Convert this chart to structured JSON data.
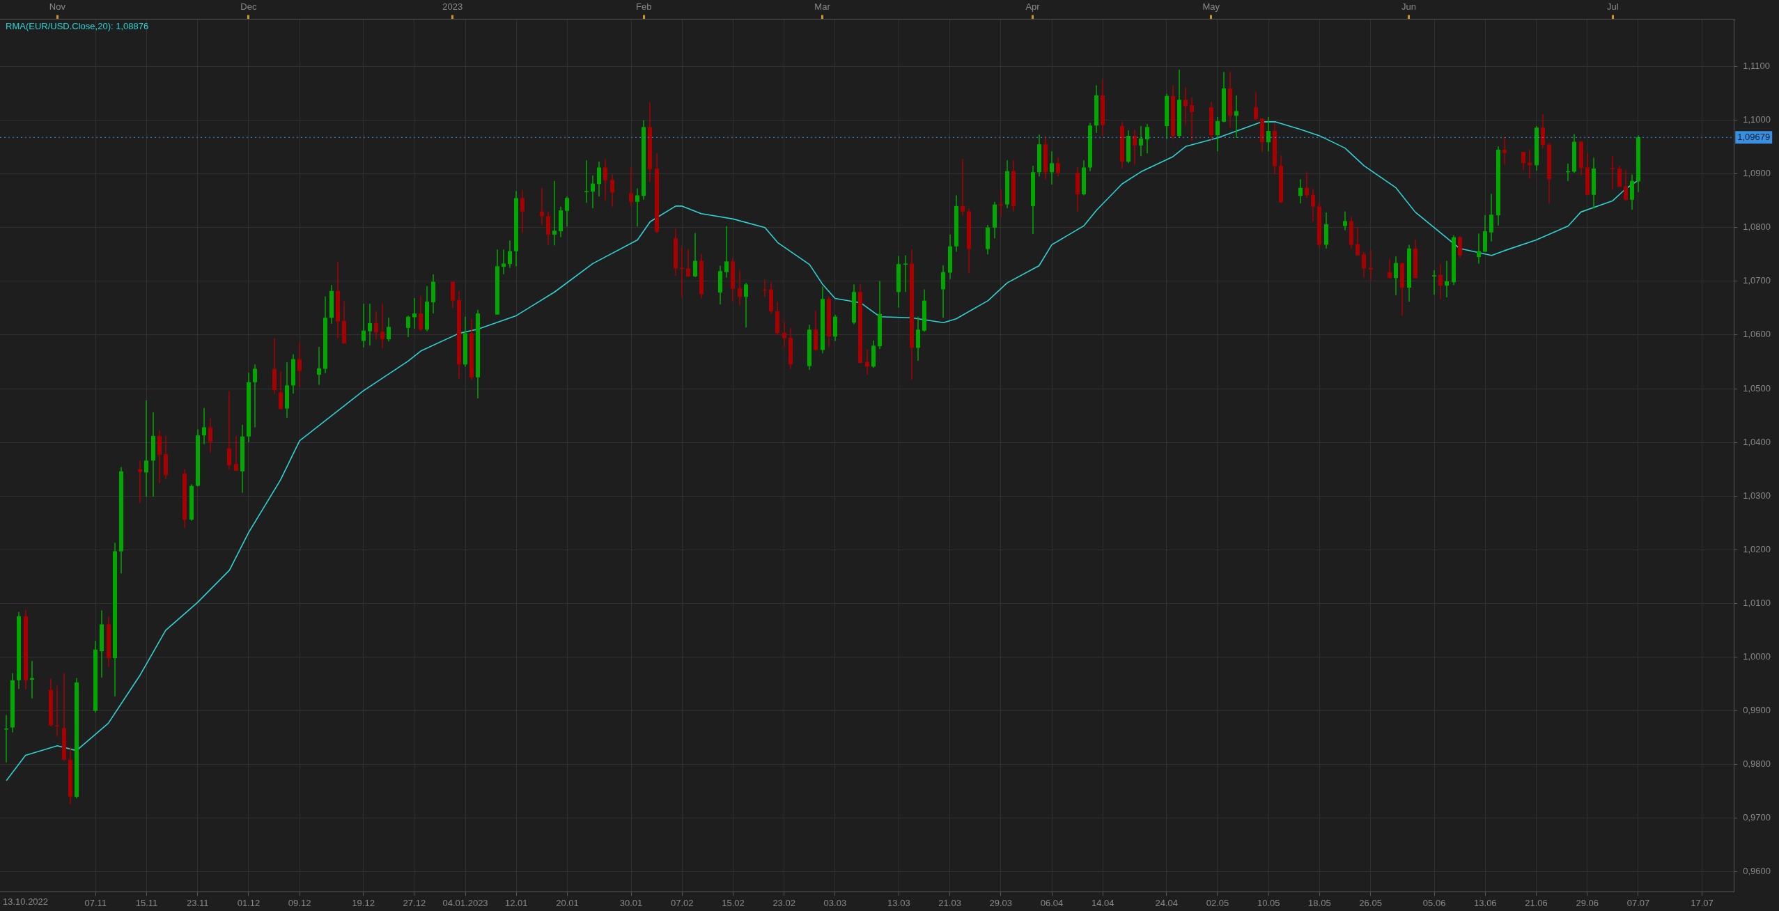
{
  "chart_data": {
    "type": "candlestick",
    "x": [
      "2022-10-24",
      "2022-10-25",
      "2022-10-26",
      "2022-10-27",
      "2022-10-28",
      "2022-10-31",
      "2022-11-01",
      "2022-11-02",
      "2022-11-03",
      "2022-11-04",
      "2022-11-07",
      "2022-11-08",
      "2022-11-09",
      "2022-11-10",
      "2022-11-11",
      "2022-11-14",
      "2022-11-15",
      "2022-11-16",
      "2022-11-17",
      "2022-11-18",
      "2022-11-21",
      "2022-11-22",
      "2022-11-23",
      "2022-11-24",
      "2022-11-25",
      "2022-11-28",
      "2022-11-29",
      "2022-11-30",
      "2022-12-01",
      "2022-12-02",
      "2022-12-05",
      "2022-12-06",
      "2022-12-07",
      "2022-12-08",
      "2022-12-09",
      "2022-12-12",
      "2022-12-13",
      "2022-12-14",
      "2022-12-15",
      "2022-12-16",
      "2022-12-19",
      "2022-12-20",
      "2022-12-21",
      "2022-12-22",
      "2022-12-23",
      "2022-12-26",
      "2022-12-27",
      "2022-12-28",
      "2022-12-29",
      "2022-12-30",
      "2023-01-02",
      "2023-01-03",
      "2023-01-04",
      "2023-01-05",
      "2023-01-06",
      "2023-01-09",
      "2023-01-10",
      "2023-01-11",
      "2023-01-12",
      "2023-01-13",
      "2023-01-16",
      "2023-01-17",
      "2023-01-18",
      "2023-01-19",
      "2023-01-20",
      "2023-01-23",
      "2023-01-24",
      "2023-01-25",
      "2023-01-26",
      "2023-01-27",
      "2023-01-30",
      "2023-01-31",
      "2023-02-01",
      "2023-02-02",
      "2023-02-03",
      "2023-02-06",
      "2023-02-07",
      "2023-02-08",
      "2023-02-09",
      "2023-02-10",
      "2023-02-13",
      "2023-02-14",
      "2023-02-15",
      "2023-02-16",
      "2023-02-17",
      "2023-02-20",
      "2023-02-21",
      "2023-02-22",
      "2023-02-23",
      "2023-02-24",
      "2023-02-27",
      "2023-02-28",
      "2023-03-01",
      "2023-03-02",
      "2023-03-03",
      "2023-03-06",
      "2023-03-07",
      "2023-03-08",
      "2023-03-09",
      "2023-03-10",
      "2023-03-13",
      "2023-03-14",
      "2023-03-15",
      "2023-03-16",
      "2023-03-17",
      "2023-03-20",
      "2023-03-21",
      "2023-03-22",
      "2023-03-23",
      "2023-03-24",
      "2023-03-27",
      "2023-03-28",
      "2023-03-29",
      "2023-03-30",
      "2023-03-31",
      "2023-04-03",
      "2023-04-04",
      "2023-04-05",
      "2023-04-06",
      "2023-04-07",
      "2023-04-10",
      "2023-04-11",
      "2023-04-12",
      "2023-04-13",
      "2023-04-14",
      "2023-04-17",
      "2023-04-18",
      "2023-04-19",
      "2023-04-20",
      "2023-04-21",
      "2023-04-24",
      "2023-04-25",
      "2023-04-26",
      "2023-04-27",
      "2023-04-28",
      "2023-05-01",
      "2023-05-02",
      "2023-05-03",
      "2023-05-04",
      "2023-05-05",
      "2023-05-08",
      "2023-05-09",
      "2023-05-10",
      "2023-05-11",
      "2023-05-12",
      "2023-05-15",
      "2023-05-16",
      "2023-05-17",
      "2023-05-18",
      "2023-05-19",
      "2023-05-22",
      "2023-05-23",
      "2023-05-24",
      "2023-05-25",
      "2023-05-26",
      "2023-05-29",
      "2023-05-30",
      "2023-05-31",
      "2023-06-01",
      "2023-06-02",
      "2023-06-05",
      "2023-06-06",
      "2023-06-07",
      "2023-06-08",
      "2023-06-09",
      "2023-06-12",
      "2023-06-13",
      "2023-06-14",
      "2023-06-15",
      "2023-06-16",
      "2023-06-19",
      "2023-06-20",
      "2023-06-21",
      "2023-06-22",
      "2023-06-23",
      "2023-06-26",
      "2023-06-27",
      "2023-06-28",
      "2023-06-29",
      "2023-06-30",
      "2023-07-03",
      "2023-07-04",
      "2023-07-05",
      "2023-07-06",
      "2023-07-07"
    ],
    "ohlc": [
      [
        0.9866,
        0.9892,
        0.9804,
        0.9867
      ],
      [
        0.9869,
        0.997,
        0.986,
        0.9957
      ],
      [
        0.9957,
        1.0084,
        0.9941,
        1.0076
      ],
      [
        1.0076,
        1.0088,
        0.994,
        0.9957
      ],
      [
        0.9958,
        0.9993,
        0.9923,
        0.9961
      ],
      [
        0.9939,
        0.996,
        0.9871,
        0.9873
      ],
      [
        0.9873,
        0.9947,
        0.9853,
        0.9872
      ],
      [
        0.9868,
        0.997,
        0.9807,
        0.9809
      ],
      [
        0.9809,
        0.9833,
        0.9726,
        0.974
      ],
      [
        0.974,
        0.9961,
        0.9737,
        0.9953
      ],
      [
        0.99,
        1.003,
        0.9897,
        1.0014
      ],
      [
        1.0011,
        1.0087,
        0.9962,
        1.0061
      ],
      [
        1.0061,
        1.0076,
        0.9982,
        0.9998
      ],
      [
        0.9998,
        1.0213,
        0.9927,
        1.0197
      ],
      [
        1.0197,
        1.0354,
        1.0156,
        1.0346
      ],
      [
        1.035,
        1.0366,
        1.0287,
        1.0345
      ],
      [
        1.0344,
        1.0478,
        1.0299,
        1.0366
      ],
      [
        1.0366,
        1.0456,
        1.0299,
        1.0412
      ],
      [
        1.0412,
        1.0423,
        1.0324,
        1.0377
      ],
      [
        1.0378,
        1.0412,
        1.0331,
        1.0339
      ],
      [
        1.0342,
        1.035,
        1.0241,
        1.0256
      ],
      [
        1.0256,
        1.0322,
        1.0254,
        1.0319
      ],
      [
        1.0319,
        1.0424,
        1.0318,
        1.0413
      ],
      [
        1.0413,
        1.0464,
        1.0397,
        1.0428
      ],
      [
        1.0428,
        1.0445,
        1.0381,
        1.0401
      ],
      [
        1.0389,
        1.0495,
        1.0349,
        1.0357
      ],
      [
        1.036,
        1.0412,
        1.0347,
        1.0347
      ],
      [
        1.0346,
        1.0433,
        1.0306,
        1.0411
      ],
      [
        1.0411,
        1.053,
        1.04,
        1.0512
      ],
      [
        1.0512,
        1.0545,
        1.0428,
        1.0537
      ],
      [
        1.0537,
        1.0594,
        1.049,
        1.0497
      ],
      [
        1.0493,
        1.0532,
        1.0461,
        1.0462
      ],
      [
        1.0463,
        1.0549,
        1.0446,
        1.0506
      ],
      [
        1.0506,
        1.0564,
        1.0491,
        1.0555
      ],
      [
        1.0555,
        1.0587,
        1.0503,
        1.0533
      ],
      [
        1.0526,
        1.0578,
        1.0507,
        1.0538
      ],
      [
        1.0537,
        1.0672,
        1.0529,
        1.0632
      ],
      [
        1.0632,
        1.0693,
        1.0621,
        1.0682
      ],
      [
        1.0682,
        1.0736,
        1.0594,
        1.0625
      ],
      [
        1.0626,
        1.0663,
        1.0584,
        1.0584
      ],
      [
        1.0589,
        1.0658,
        1.0577,
        1.0608
      ],
      [
        1.0607,
        1.0658,
        1.058,
        1.0622
      ],
      [
        1.0622,
        1.0644,
        1.0592,
        1.0605
      ],
      [
        1.0606,
        1.0659,
        1.0575,
        1.0592
      ],
      [
        1.0592,
        1.0632,
        1.0588,
        1.0615
      ],
      [
        1.0613,
        1.0636,
        1.0596,
        1.0634
      ],
      [
        1.0633,
        1.0669,
        1.0612,
        1.064
      ],
      [
        1.064,
        1.0673,
        1.0607,
        1.061
      ],
      [
        1.061,
        1.0691,
        1.0607,
        1.0662
      ],
      [
        1.0661,
        1.0713,
        1.064,
        1.0699
      ],
      [
        1.0699,
        1.0699,
        1.065,
        1.0664
      ],
      [
        1.0665,
        1.0682,
        1.0519,
        1.0545
      ],
      [
        1.0545,
        1.0634,
        1.0541,
        1.0603
      ],
      [
        1.0603,
        1.063,
        1.0516,
        1.0521
      ],
      [
        1.0521,
        1.0647,
        1.0482,
        1.064
      ],
      [
        1.0638,
        1.0759,
        1.0638,
        1.0728
      ],
      [
        1.0727,
        1.0759,
        1.0713,
        1.0733
      ],
      [
        1.0732,
        1.0776,
        1.0725,
        1.0756
      ],
      [
        1.0756,
        1.0868,
        1.0728,
        1.0855
      ],
      [
        1.0855,
        1.087,
        1.079,
        1.083
      ],
      [
        1.083,
        1.0874,
        1.0805,
        1.0821
      ],
      [
        1.0821,
        1.083,
        1.0768,
        1.0787
      ],
      [
        1.0787,
        1.0887,
        1.0767,
        1.0794
      ],
      [
        1.0793,
        1.0839,
        1.0782,
        1.0832
      ],
      [
        1.0831,
        1.0858,
        1.0802,
        1.0855
      ],
      [
        1.0867,
        1.0925,
        1.0846,
        1.0868
      ],
      [
        1.0867,
        1.0897,
        1.0836,
        1.0882
      ],
      [
        1.0881,
        1.0923,
        1.0858,
        1.0912
      ],
      [
        1.0912,
        1.0927,
        1.0851,
        1.0888
      ],
      [
        1.0889,
        1.0899,
        1.0839,
        1.0865
      ],
      [
        1.0864,
        1.0912,
        1.0839,
        1.0848
      ],
      [
        1.0848,
        1.0873,
        1.0802,
        1.086
      ],
      [
        1.0859,
        1.1,
        1.0852,
        1.0987
      ],
      [
        1.0987,
        1.1033,
        1.0885,
        1.0909
      ],
      [
        1.091,
        1.0938,
        1.079,
        1.0792
      ],
      [
        1.078,
        1.0798,
        1.071,
        1.0724
      ],
      [
        1.0725,
        1.0765,
        1.067,
        1.0723
      ],
      [
        1.0724,
        1.076,
        1.0708,
        1.0709
      ],
      [
        1.0709,
        1.079,
        1.0708,
        1.0738
      ],
      [
        1.0738,
        1.0751,
        1.0668,
        1.0676
      ],
      [
        1.0679,
        1.0729,
        1.0657,
        1.0719
      ],
      [
        1.0717,
        1.0803,
        1.0707,
        1.0737
      ],
      [
        1.0737,
        1.0743,
        1.0662,
        1.0686
      ],
      [
        1.0687,
        1.0721,
        1.0655,
        1.0671
      ],
      [
        1.0671,
        1.0697,
        1.0614,
        1.0694
      ],
      [
        1.0685,
        1.0703,
        1.0671,
        1.0684
      ],
      [
        1.0685,
        1.0698,
        1.0639,
        1.0644
      ],
      [
        1.0644,
        1.0662,
        1.06,
        1.0603
      ],
      [
        1.0604,
        1.0626,
        1.0577,
        1.0594
      ],
      [
        1.0595,
        1.0613,
        1.0537,
        1.0545
      ],
      [
        1.0542,
        1.0619,
        1.0535,
        1.061
      ],
      [
        1.061,
        1.0645,
        1.0571,
        1.0572
      ],
      [
        1.0572,
        1.069,
        1.0566,
        1.0667
      ],
      [
        1.0667,
        1.0672,
        1.0577,
        1.0597
      ],
      [
        1.0597,
        1.0638,
        1.0589,
        1.0634
      ],
      [
        1.0623,
        1.0694,
        1.062,
        1.068
      ],
      [
        1.068,
        1.0694,
        1.0547,
        1.0548
      ],
      [
        1.055,
        1.0573,
        1.0526,
        1.0541
      ],
      [
        1.0541,
        1.059,
        1.0539,
        1.058
      ],
      [
        1.0579,
        1.07,
        1.0574,
        1.0639
      ],
      [
        1.068,
        1.0747,
        1.0651,
        1.0732
      ],
      [
        1.0732,
        1.0748,
        1.068,
        1.0733
      ],
      [
        1.0733,
        1.0759,
        1.0517,
        1.0576
      ],
      [
        1.0576,
        1.0634,
        1.0552,
        1.061
      ],
      [
        1.0608,
        1.0685,
        1.0606,
        1.0664
      ],
      [
        1.0685,
        1.073,
        1.0632,
        1.0717
      ],
      [
        1.0716,
        1.0787,
        1.0704,
        1.0765
      ],
      [
        1.0765,
        1.086,
        1.0755,
        1.084
      ],
      [
        1.084,
        1.0928,
        1.0822,
        1.083
      ],
      [
        1.083,
        1.0836,
        1.0715,
        1.076
      ],
      [
        1.076,
        1.0805,
        1.075,
        1.08
      ],
      [
        1.08,
        1.0848,
        1.078,
        1.0843
      ],
      [
        1.0843,
        1.087,
        1.082,
        1.0842
      ],
      [
        1.0843,
        1.0925,
        1.0836,
        1.0905
      ],
      [
        1.0905,
        1.0925,
        1.083,
        1.084
      ],
      [
        1.084,
        1.0915,
        1.0788,
        1.0903
      ],
      [
        1.0903,
        1.0973,
        1.0895,
        1.0955
      ],
      [
        1.0955,
        1.097,
        1.089,
        1.0903
      ],
      [
        1.0903,
        1.0942,
        1.088,
        1.092
      ],
      [
        1.092,
        1.093,
        1.0895,
        1.0902
      ],
      [
        1.0902,
        1.0912,
        1.083,
        1.0862
      ],
      [
        1.0862,
        1.0925,
        1.086,
        1.0912
      ],
      [
        1.0912,
        1.0995,
        1.0905,
        1.099
      ],
      [
        1.099,
        1.1065,
        1.0976,
        1.1046
      ],
      [
        1.1046,
        1.1075,
        1.0971,
        1.0991
      ],
      [
        1.0989,
        1.0997,
        1.091,
        1.0923
      ],
      [
        1.0923,
        1.0981,
        1.092,
        1.0971
      ],
      [
        1.0971,
        1.0982,
        1.0917,
        1.0953
      ],
      [
        1.0953,
        1.0989,
        1.0933,
        1.0966
      ],
      [
        1.0964,
        1.0993,
        1.0938,
        1.0987
      ],
      [
        1.0989,
        1.1049,
        1.0965,
        1.1045
      ],
      [
        1.1045,
        1.1065,
        1.0964,
        1.0971
      ],
      [
        1.0971,
        1.1094,
        1.0967,
        1.1038
      ],
      [
        1.1038,
        1.1061,
        1.0991,
        1.1026
      ],
      [
        1.1028,
        1.1043,
        1.0961,
        1.1015
      ],
      [
        1.1024,
        1.1034,
        1.0963,
        1.0972
      ],
      [
        1.0972,
        1.1006,
        1.0942,
        1.0998
      ],
      [
        1.0997,
        1.109,
        1.0996,
        1.1059
      ],
      [
        1.1059,
        1.109,
        1.0986,
        1.1008
      ],
      [
        1.1008,
        1.1046,
        1.0967,
        1.1017
      ],
      [
        1.1024,
        1.1052,
        1.1,
        1.1002
      ],
      [
        1.1003,
        1.1003,
        1.0941,
        1.0959
      ],
      [
        1.0959,
        1.1006,
        1.0942,
        1.098
      ],
      [
        1.098,
        1.0995,
        1.0899,
        1.0914
      ],
      [
        1.0915,
        1.0934,
        1.0846,
        1.0847
      ],
      [
        1.0859,
        1.089,
        1.0845,
        1.0874
      ],
      [
        1.0874,
        1.0903,
        1.0855,
        1.086
      ],
      [
        1.0861,
        1.0872,
        1.0811,
        1.0839
      ],
      [
        1.0839,
        1.0847,
        1.0763,
        1.0768
      ],
      [
        1.0768,
        1.0828,
        1.0761,
        1.0806
      ],
      [
        1.0803,
        1.083,
        1.0795,
        1.0812
      ],
      [
        1.0812,
        1.082,
        1.0761,
        1.0768
      ],
      [
        1.0769,
        1.08,
        1.0748,
        1.0748
      ],
      [
        1.075,
        1.0755,
        1.0707,
        1.0724
      ],
      [
        1.0725,
        1.0758,
        1.0702,
        1.0722
      ],
      [
        1.0717,
        1.0742,
        1.0706,
        1.0706
      ],
      [
        1.0706,
        1.0746,
        1.0674,
        1.0734
      ],
      [
        1.0734,
        1.0734,
        1.0636,
        1.0688
      ],
      [
        1.0688,
        1.0768,
        1.0662,
        1.0761
      ],
      [
        1.0761,
        1.0778,
        1.0706,
        1.0706
      ],
      [
        1.071,
        1.0721,
        1.0675,
        1.0711
      ],
      [
        1.0712,
        1.0732,
        1.0667,
        1.0692
      ],
      [
        1.0692,
        1.0738,
        1.067,
        1.07
      ],
      [
        1.0698,
        1.0786,
        1.0693,
        1.0782
      ],
      [
        1.0782,
        1.0784,
        1.0744,
        1.0748
      ],
      [
        1.0745,
        1.0789,
        1.0733,
        1.0756
      ],
      [
        1.0755,
        1.0823,
        1.0755,
        1.0793
      ],
      [
        1.0791,
        1.0863,
        1.0774,
        1.0824
      ],
      [
        1.0823,
        1.0951,
        1.0804,
        1.0945
      ],
      [
        1.0945,
        1.0969,
        1.0917,
        1.0939
      ],
      [
        1.0941,
        1.0941,
        1.0907,
        1.092
      ],
      [
        1.0921,
        1.0945,
        1.0891,
        1.0916
      ],
      [
        1.0916,
        1.0989,
        1.0906,
        1.0986
      ],
      [
        1.0986,
        1.1011,
        1.0948,
        1.0954
      ],
      [
        1.0955,
        1.0958,
        1.0845,
        1.089
      ],
      [
        1.0904,
        1.0919,
        1.0887,
        1.0905
      ],
      [
        1.0904,
        1.0974,
        1.0902,
        1.096
      ],
      [
        1.096,
        1.0961,
        1.0897,
        1.0911
      ],
      [
        1.0912,
        1.0939,
        1.0861,
        1.0861
      ],
      [
        1.0861,
        1.093,
        1.0835,
        1.091
      ],
      [
        1.0911,
        1.0933,
        1.0871,
        1.0909
      ],
      [
        1.091,
        1.0915,
        1.0876,
        1.0876
      ],
      [
        1.0877,
        1.0907,
        1.085,
        1.0852
      ],
      [
        1.0852,
        1.0899,
        1.0833,
        1.0887
      ],
      [
        1.0886,
        1.0972,
        1.0866,
        1.09679
      ]
    ],
    "colors": [
      "#00a800",
      "#00a800",
      "#00a800",
      "#a80000",
      "#00a800",
      "#a80000",
      "#a80000",
      "#a80000",
      "#a80000",
      "#00a800",
      "#00a800",
      "#00a800",
      "#a80000",
      "#00a800",
      "#00a800",
      "#a80000",
      "#00a800",
      "#00a800",
      "#a80000",
      "#a80000",
      "#a80000",
      "#00a800",
      "#00a800",
      "#00a800",
      "#a80000",
      "#a80000",
      "#a80000",
      "#00a800",
      "#00a800",
      "#00a800",
      "#a80000",
      "#a80000",
      "#00a800",
      "#00a800",
      "#a80000",
      "#00a800",
      "#00a800",
      "#00a800",
      "#a80000",
      "#a80000",
      "#00a800",
      "#00a800",
      "#a80000",
      "#a80000",
      "#00a800",
      "#00a800",
      "#00a800",
      "#a80000",
      "#00a800",
      "#00a800",
      "#a80000",
      "#a80000",
      "#00a800",
      "#a80000",
      "#00a800",
      "#00a800",
      "#00a800",
      "#00a800",
      "#00a800",
      "#a80000",
      "#a80000",
      "#a80000",
      "#00a800",
      "#00a800",
      "#00a800",
      "#00a800",
      "#00a800",
      "#00a800",
      "#a80000",
      "#a80000",
      "#a80000",
      "#00a800",
      "#00a800",
      "#a80000",
      "#a80000",
      "#a80000",
      "#a80000",
      "#a80000",
      "#00a800",
      "#a80000",
      "#00a800",
      "#00a800",
      "#a80000",
      "#a80000",
      "#00a800",
      "#a80000",
      "#a80000",
      "#a80000",
      "#a80000",
      "#a80000",
      "#00a800",
      "#a80000",
      "#00a800",
      "#a80000",
      "#00a800",
      "#00a800",
      "#a80000",
      "#a80000",
      "#00a800",
      "#00a800",
      "#00a800",
      "#00a800",
      "#a80000",
      "#00a800",
      "#00a800",
      "#00a800",
      "#00a800",
      "#00a800",
      "#a80000",
      "#a80000",
      "#00a800",
      "#00a800",
      "#a80000",
      "#00a800",
      "#a80000",
      "#00a800",
      "#00a800",
      "#a80000",
      "#00a800",
      "#a80000",
      "#a80000",
      "#00a800",
      "#00a800",
      "#00a800",
      "#a80000",
      "#a80000",
      "#00a800",
      "#a80000",
      "#00a800",
      "#00a800",
      "#00a800",
      "#a80000",
      "#00a800",
      "#a80000",
      "#a80000",
      "#a80000",
      "#00a800",
      "#00a800",
      "#a80000",
      "#00a800",
      "#a80000",
      "#a80000",
      "#00a800",
      "#a80000",
      "#a80000",
      "#00a800",
      "#a80000",
      "#a80000",
      "#a80000",
      "#00a800",
      "#00a800",
      "#a80000",
      "#a80000",
      "#a80000",
      "#a80000",
      "#a80000",
      "#00a800",
      "#a80000",
      "#00a800",
      "#a80000",
      "#00a800",
      "#a80000",
      "#00a800",
      "#00a800",
      "#a80000",
      "#00a800",
      "#00a800",
      "#00a800",
      "#00a800",
      "#a80000",
      "#a80000",
      "#a80000",
      "#00a800",
      "#a80000",
      "#a80000",
      "#00a800",
      "#00a800",
      "#a80000",
      "#a80000",
      "#00a800",
      "#a80000",
      "#a80000",
      "#a80000",
      "#00a800",
      "#00a800"
    ],
    "series": [
      {
        "type": "line",
        "name": "RMA(EUR/USD.Close,20): 1,08876",
        "color": "#2fd3d3",
        "x": [
          "2022-10-24",
          "2022-10-27",
          "2022-11-01",
          "2022-11-04",
          "2022-11-09",
          "2022-11-14",
          "2022-11-18",
          "2022-11-23",
          "2022-11-28",
          "2022-12-01",
          "2022-12-06",
          "2022-12-09",
          "2022-12-19",
          "2022-12-26",
          "2022-12-28",
          "2023-01-03",
          "2023-01-06",
          "2023-01-12",
          "2023-01-18",
          "2023-01-24",
          "2023-01-31",
          "2023-02-02",
          "2023-02-06",
          "2023-02-07",
          "2023-02-10",
          "2023-02-15",
          "2023-02-20",
          "2023-02-22",
          "2023-02-27",
          "2023-03-01",
          "2023-03-03",
          "2023-03-07",
          "2023-03-10",
          "2023-03-15",
          "2023-03-20",
          "2023-03-22",
          "2023-03-27",
          "2023-03-30",
          "2023-04-04",
          "2023-04-06",
          "2023-04-11",
          "2023-04-13",
          "2023-04-17",
          "2023-04-20",
          "2023-04-25",
          "2023-04-27",
          "2023-05-02",
          "2023-05-05",
          "2023-05-09",
          "2023-05-11",
          "2023-05-15",
          "2023-05-18",
          "2023-05-22",
          "2023-05-25",
          "2023-05-30",
          "2023-06-02",
          "2023-06-06",
          "2023-06-09",
          "2023-06-14",
          "2023-06-16",
          "2023-06-21",
          "2023-06-26",
          "2023-06-28",
          "2023-07-03",
          "2023-07-05",
          "2023-07-07"
        ],
        "values": [
          0.977,
          0.9817,
          0.9835,
          0.9826,
          0.9877,
          0.9967,
          1.005,
          1.0102,
          1.0162,
          1.0232,
          1.033,
          1.0403,
          1.0496,
          1.0551,
          1.057,
          1.0603,
          1.0611,
          1.0636,
          1.068,
          1.0733,
          1.0777,
          1.0811,
          1.084,
          1.084,
          1.0826,
          1.0816,
          1.08,
          1.0772,
          1.0731,
          1.0695,
          1.0668,
          1.066,
          1.0634,
          1.0632,
          1.0623,
          1.063,
          1.0664,
          1.0697,
          1.0729,
          1.0768,
          1.0803,
          1.0832,
          1.0881,
          1.0904,
          1.0932,
          1.0951,
          1.0967,
          1.098,
          1.0997,
          1.0997,
          1.0983,
          1.0971,
          1.0948,
          1.0915,
          1.0874,
          1.0829,
          1.079,
          1.0761,
          1.0748,
          1.0757,
          1.0777,
          1.0803,
          1.0829,
          1.085,
          1.0872,
          1.0888
        ]
      }
    ],
    "xlim": [
      "2022-10-23",
      "2023-07-22"
    ],
    "xticks": [
      {
        "value": "2022-11-07",
        "label": "07.11"
      },
      {
        "value": "2022-11-15",
        "label": "15.11"
      },
      {
        "value": "2022-11-23",
        "label": "23.11"
      },
      {
        "value": "2022-12-01",
        "label": "01.12"
      },
      {
        "value": "2022-12-09",
        "label": "09.12"
      },
      {
        "value": "2022-12-19",
        "label": "19.12"
      },
      {
        "value": "2022-12-27",
        "label": "27.12"
      },
      {
        "value": "2023-01-04",
        "label": "04.01.2023"
      },
      {
        "value": "2023-01-12",
        "label": "12.01"
      },
      {
        "value": "2023-01-20",
        "label": "20.01"
      },
      {
        "value": "2023-01-30",
        "label": "30.01"
      },
      {
        "value": "2023-02-07",
        "label": "07.02"
      },
      {
        "value": "2023-02-15",
        "label": "15.02"
      },
      {
        "value": "2023-02-23",
        "label": "23.02"
      },
      {
        "value": "2023-03-03",
        "label": "03.03"
      },
      {
        "value": "2023-03-13",
        "label": "13.03"
      },
      {
        "value": "2023-03-21",
        "label": "21.03"
      },
      {
        "value": "2023-03-29",
        "label": "29.03"
      },
      {
        "value": "2023-04-06",
        "label": "06.04"
      },
      {
        "value": "2023-04-14",
        "label": "14.04"
      },
      {
        "value": "2023-04-24",
        "label": "24.04"
      },
      {
        "value": "2023-05-02",
        "label": "02.05"
      },
      {
        "value": "2023-05-10",
        "label": "10.05"
      },
      {
        "value": "2023-05-18",
        "label": "18.05"
      },
      {
        "value": "2023-05-26",
        "label": "26.05"
      },
      {
        "value": "2023-06-05",
        "label": "05.06"
      },
      {
        "value": "2023-06-13",
        "label": "13.06"
      },
      {
        "value": "2023-06-21",
        "label": "21.06"
      },
      {
        "value": "2023-06-29",
        "label": "29.06"
      },
      {
        "value": "2023-07-07",
        "label": "07.07"
      },
      {
        "value": "2023-07-17",
        "label": "17.07"
      }
    ],
    "x2lim": [
      "2022-10-23",
      "2023-07-22"
    ],
    "x2ticks": [
      {
        "value": "2022-11-01",
        "label": "Nov"
      },
      {
        "value": "2022-12-01",
        "label": "Dec"
      },
      {
        "value": "2023-01-02",
        "label": "2023"
      },
      {
        "value": "2023-02-01",
        "label": "Feb"
      },
      {
        "value": "2023-03-01",
        "label": "Mar"
      },
      {
        "value": "2023-04-03",
        "label": "Apr"
      },
      {
        "value": "2023-05-01",
        "label": "May"
      },
      {
        "value": "2023-06-01",
        "label": "Jun"
      },
      {
        "value": "2023-07-03",
        "label": "Jul"
      }
    ],
    "ref_lines": [
      {
        "axis": "y",
        "value": 1.09679,
        "label": "1,09679",
        "color": "#3b8fe0",
        "line_style": "dotted"
      }
    ],
    "ylim": [
      0.9563,
      1.1188
    ],
    "yticks": [
      {
        "value": 0.96,
        "label": "0,9600"
      },
      {
        "value": 0.97,
        "label": "0,9700"
      },
      {
        "value": 0.98,
        "label": "0,9800"
      },
      {
        "value": 0.99,
        "label": "0,9900"
      },
      {
        "value": 1.0,
        "label": "1,0000"
      },
      {
        "value": 1.01,
        "label": "1,0100"
      },
      {
        "value": 1.02,
        "label": "1,0200"
      },
      {
        "value": 1.03,
        "label": "1,0300"
      },
      {
        "value": 1.04,
        "label": "1,0400"
      },
      {
        "value": 1.05,
        "label": "1,0500"
      },
      {
        "value": 1.06,
        "label": "1,0600"
      },
      {
        "value": 1.07,
        "label": "1,0700"
      },
      {
        "value": 1.08,
        "label": "1,0800"
      },
      {
        "value": 1.09,
        "label": "1,0900"
      },
      {
        "value": 1.1,
        "label": "1,1000"
      },
      {
        "value": 1.11,
        "label": "1,1100"
      }
    ],
    "grid": true,
    "legend": "top left",
    "marker": "none",
    "annotations": [
      "13.10.2022"
    ]
  }
}
